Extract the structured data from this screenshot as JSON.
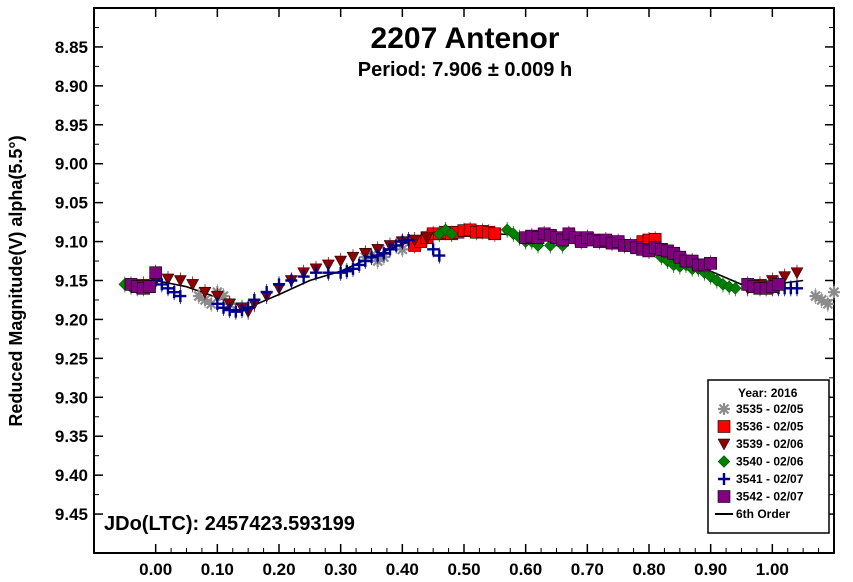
{
  "chart_data": {
    "type": "scatter",
    "title": "2207 Antenor",
    "subtitle": "Period: 7.906 ± 0.009 h",
    "ylabel": "Reduced Magnitude(V) alpha(5.5°)",
    "xlabel": "",
    "annotation": "JDo(LTC): 2457423.593199",
    "xlim": [
      -0.1,
      1.1
    ],
    "ylim": [
      9.5,
      8.8
    ],
    "y_inverted": true,
    "x_ticks": [
      "0.00",
      "0.10",
      "0.20",
      "0.30",
      "0.40",
      "0.50",
      "0.60",
      "0.70",
      "0.80",
      "0.90",
      "1.00"
    ],
    "y_ticks": [
      "8.85",
      "8.90",
      "8.95",
      "9.00",
      "9.05",
      "9.10",
      "9.15",
      "9.20",
      "9.25",
      "9.30",
      "9.35",
      "9.40",
      "9.45"
    ],
    "grid": false,
    "legend": {
      "placement": "bottom-right",
      "title": "Year: 2016",
      "entries": [
        {
          "label": "3535 - 02/05",
          "marker": "asterisk",
          "color": "#8c8c8c"
        },
        {
          "label": "3536 - 02/05",
          "marker": "square",
          "color": "#ff0000"
        },
        {
          "label": "3539 - 02/06",
          "marker": "triangle-down",
          "color": "#8b0000"
        },
        {
          "label": "3540 - 02/06",
          "marker": "diamond",
          "color": "#008000"
        },
        {
          "label": "3541 - 02/07",
          "marker": "plus",
          "color": "#00008b"
        },
        {
          "label": "3542 - 02/07",
          "marker": "square",
          "color": "#800080"
        },
        {
          "label": "6th Order",
          "marker": "line",
          "color": "#000000"
        }
      ]
    },
    "series": [
      {
        "name": "3535 - 02/05",
        "x": [
          0.07,
          0.08,
          0.09,
          0.1,
          0.11,
          0.12,
          0.34,
          0.35,
          0.36,
          0.37,
          0.4,
          1.07,
          1.08,
          1.09,
          1.1
        ],
        "y": [
          9.17,
          9.175,
          9.18,
          9.165,
          9.17,
          9.18,
          9.12,
          9.118,
          9.125,
          9.12,
          9.11,
          9.17,
          9.175,
          9.18,
          9.165
        ]
      },
      {
        "name": "3536 - 02/05",
        "x": [
          0.42,
          0.43,
          0.44,
          0.45,
          0.46,
          0.47,
          0.48,
          0.49,
          0.5,
          0.51,
          0.52,
          0.53,
          0.54,
          0.55,
          0.79,
          0.8,
          0.81
        ],
        "y": [
          9.105,
          9.1,
          9.095,
          9.09,
          9.09,
          9.088,
          9.09,
          9.088,
          9.086,
          9.085,
          9.088,
          9.087,
          9.088,
          9.09,
          9.1,
          9.098,
          9.097
        ]
      },
      {
        "name": "3539 - 02/06",
        "x": [
          -0.02,
          0.0,
          0.02,
          0.04,
          0.06,
          0.08,
          0.1,
          0.12,
          0.14,
          0.15,
          0.16,
          0.18,
          0.2,
          0.22,
          0.24,
          0.26,
          0.28,
          0.3,
          0.32,
          0.34,
          0.36,
          0.38,
          0.4,
          0.42,
          0.44,
          0.96,
          0.98,
          1.0,
          1.02,
          1.04
        ],
        "y": [
          9.155,
          9.15,
          9.148,
          9.15,
          9.155,
          9.165,
          9.17,
          9.18,
          9.185,
          9.19,
          9.18,
          9.17,
          9.16,
          9.15,
          9.14,
          9.135,
          9.13,
          9.125,
          9.12,
          9.115,
          9.11,
          9.105,
          9.1,
          9.098,
          9.095,
          9.16,
          9.155,
          9.15,
          9.145,
          9.14
        ]
      },
      {
        "name": "3540 - 02/06",
        "x": [
          -0.05,
          -0.04,
          -0.03,
          0.46,
          0.47,
          0.48,
          0.57,
          0.58,
          0.59,
          0.6,
          0.61,
          0.62,
          0.64,
          0.66,
          0.82,
          0.83,
          0.84,
          0.85,
          0.86,
          0.87,
          0.88,
          0.89,
          0.9,
          0.91,
          0.92,
          0.93,
          0.94
        ],
        "y": [
          9.155,
          9.158,
          9.16,
          9.09,
          9.085,
          9.09,
          9.085,
          9.09,
          9.095,
          9.1,
          9.1,
          9.105,
          9.105,
          9.105,
          9.12,
          9.125,
          9.13,
          9.132,
          9.13,
          9.135,
          9.135,
          9.14,
          9.145,
          9.15,
          9.155,
          9.158,
          9.16
        ]
      },
      {
        "name": "3541 - 02/07",
        "x": [
          0.0,
          0.01,
          0.02,
          0.03,
          0.04,
          0.1,
          0.11,
          0.12,
          0.13,
          0.14,
          0.15,
          0.16,
          0.18,
          0.2,
          0.22,
          0.24,
          0.26,
          0.28,
          0.3,
          0.31,
          0.32,
          0.33,
          0.34,
          0.35,
          0.36,
          0.37,
          0.38,
          0.39,
          0.4,
          0.41,
          0.45,
          0.46,
          0.99,
          1.0,
          1.01,
          1.02,
          1.03,
          1.04
        ],
        "y": [
          9.15,
          9.155,
          9.16,
          9.165,
          9.17,
          9.18,
          9.185,
          9.188,
          9.19,
          9.188,
          9.185,
          9.175,
          9.165,
          9.155,
          9.15,
          9.145,
          9.14,
          9.14,
          9.14,
          9.138,
          9.135,
          9.13,
          9.125,
          9.12,
          9.118,
          9.115,
          9.11,
          9.105,
          9.1,
          9.098,
          9.11,
          9.118,
          9.158,
          9.16,
          9.16,
          9.16,
          9.16,
          9.16
        ]
      },
      {
        "name": "3542 - 02/07",
        "x": [
          -0.04,
          -0.03,
          -0.02,
          -0.01,
          0.0,
          0.6,
          0.61,
          0.62,
          0.63,
          0.64,
          0.65,
          0.66,
          0.67,
          0.68,
          0.69,
          0.7,
          0.71,
          0.72,
          0.73,
          0.74,
          0.75,
          0.76,
          0.77,
          0.78,
          0.79,
          0.8,
          0.81,
          0.82,
          0.83,
          0.84,
          0.85,
          0.86,
          0.87,
          0.88,
          0.89,
          0.9,
          0.96,
          0.97,
          0.98,
          0.99,
          1.0,
          1.01
        ],
        "y": [
          9.155,
          9.158,
          9.16,
          9.158,
          9.14,
          9.095,
          9.093,
          9.095,
          9.09,
          9.092,
          9.095,
          9.098,
          9.09,
          9.095,
          9.1,
          9.095,
          9.098,
          9.1,
          9.098,
          9.102,
          9.1,
          9.105,
          9.105,
          9.108,
          9.11,
          9.112,
          9.108,
          9.11,
          9.112,
          9.115,
          9.12,
          9.125,
          9.125,
          9.13,
          9.13,
          9.128,
          9.155,
          9.158,
          9.16,
          9.16,
          9.158,
          9.155
        ]
      }
    ],
    "fit": {
      "name": "6th Order",
      "x": [
        -0.05,
        0.0,
        0.05,
        0.1,
        0.15,
        0.2,
        0.25,
        0.3,
        0.35,
        0.4,
        0.45,
        0.5,
        0.55,
        0.6,
        0.65,
        0.7,
        0.75,
        0.8,
        0.85,
        0.9,
        0.95,
        1.0,
        1.05
      ],
      "y": [
        9.155,
        9.15,
        9.158,
        9.172,
        9.185,
        9.168,
        9.15,
        9.138,
        9.12,
        9.103,
        9.095,
        9.09,
        9.09,
        9.092,
        9.095,
        9.098,
        9.103,
        9.11,
        9.122,
        9.138,
        9.155,
        9.155,
        9.15
      ]
    }
  }
}
